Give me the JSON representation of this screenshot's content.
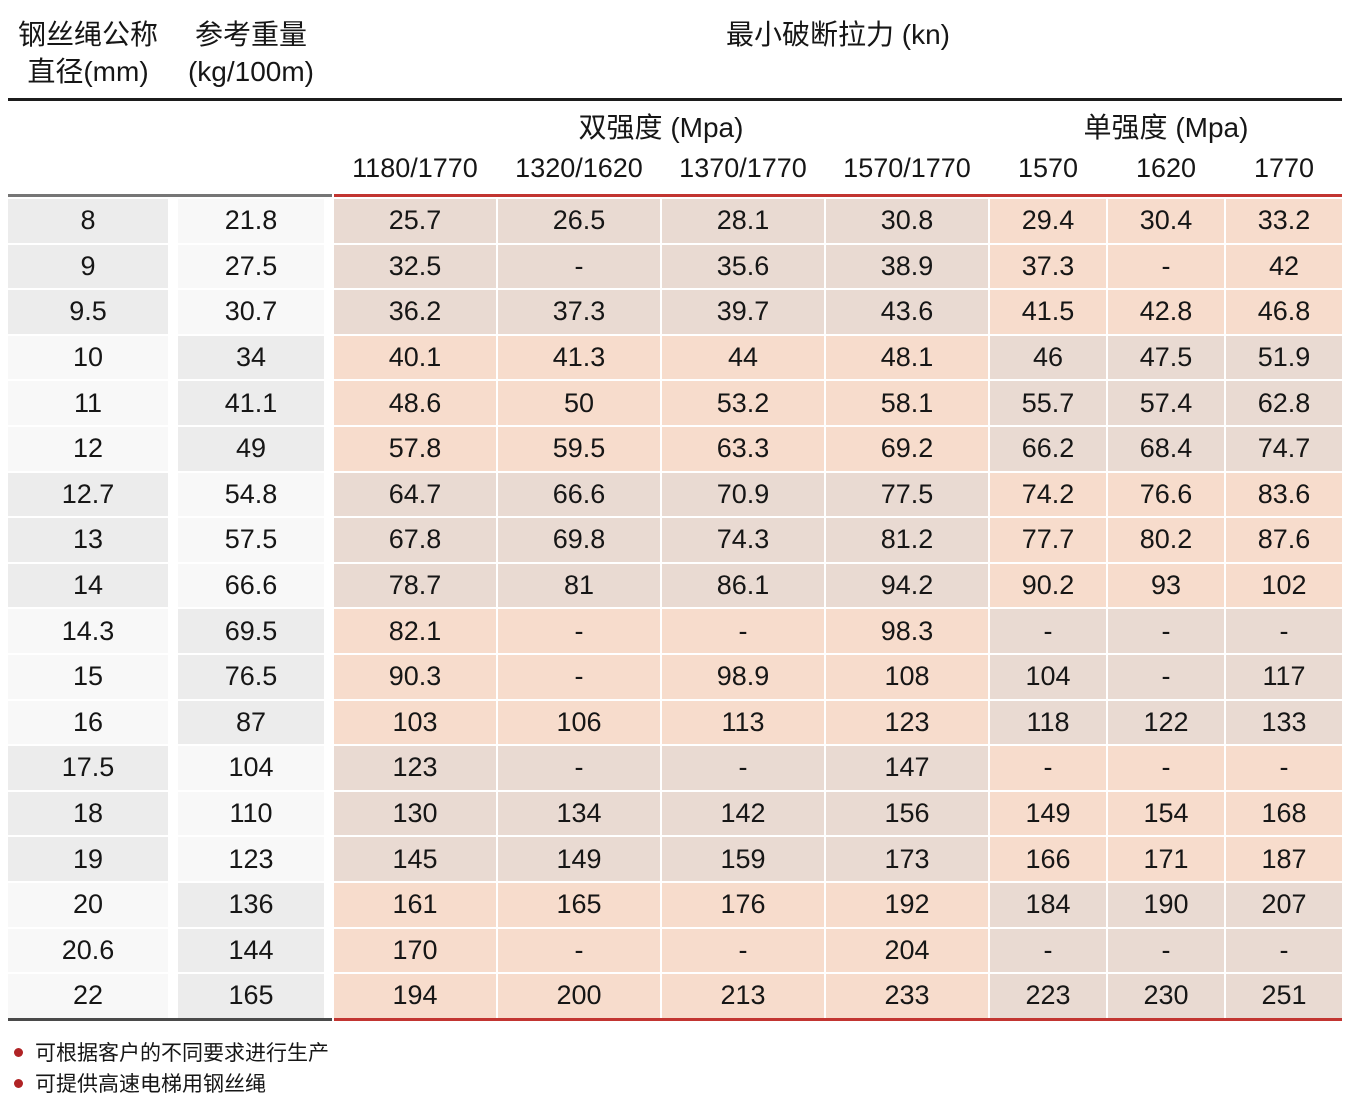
{
  "header": {
    "col1_line1": "钢丝绳公称",
    "col1_line2": "直径(mm)",
    "col2_line1": "参考重量",
    "col2_line2": "(kg/100m)",
    "span_title": "最小破断拉力 (kn)",
    "group_double": "双强度 (Mpa)",
    "group_single": "单强度 (Mpa)",
    "subcols": [
      "1180/1770",
      "1320/1620",
      "1370/1770",
      "1570/1770",
      "1570",
      "1620",
      "1770"
    ]
  },
  "rows": [
    {
      "diameter": "8",
      "weight": "21.8",
      "values": [
        "25.7",
        "26.5",
        "28.1",
        "30.8",
        "29.4",
        "30.4",
        "33.2"
      ]
    },
    {
      "diameter": "9",
      "weight": "27.5",
      "values": [
        "32.5",
        "-",
        "35.6",
        "38.9",
        "37.3",
        "-",
        "42"
      ]
    },
    {
      "diameter": "9.5",
      "weight": "30.7",
      "values": [
        "36.2",
        "37.3",
        "39.7",
        "43.6",
        "41.5",
        "42.8",
        "46.8"
      ]
    },
    {
      "diameter": "10",
      "weight": "34",
      "values": [
        "40.1",
        "41.3",
        "44",
        "48.1",
        "46",
        "47.5",
        "51.9"
      ]
    },
    {
      "diameter": "11",
      "weight": "41.1",
      "values": [
        "48.6",
        "50",
        "53.2",
        "58.1",
        "55.7",
        "57.4",
        "62.8"
      ]
    },
    {
      "diameter": "12",
      "weight": "49",
      "values": [
        "57.8",
        "59.5",
        "63.3",
        "69.2",
        "66.2",
        "68.4",
        "74.7"
      ]
    },
    {
      "diameter": "12.7",
      "weight": "54.8",
      "values": [
        "64.7",
        "66.6",
        "70.9",
        "77.5",
        "74.2",
        "76.6",
        "83.6"
      ]
    },
    {
      "diameter": "13",
      "weight": "57.5",
      "values": [
        "67.8",
        "69.8",
        "74.3",
        "81.2",
        "77.7",
        "80.2",
        "87.6"
      ]
    },
    {
      "diameter": "14",
      "weight": "66.6",
      "values": [
        "78.7",
        "81",
        "86.1",
        "94.2",
        "90.2",
        "93",
        "102"
      ]
    },
    {
      "diameter": "14.3",
      "weight": "69.5",
      "values": [
        "82.1",
        "-",
        "-",
        "98.3",
        "-",
        "-",
        "-"
      ]
    },
    {
      "diameter": "15",
      "weight": "76.5",
      "values": [
        "90.3",
        "-",
        "98.9",
        "108",
        "104",
        "-",
        "117"
      ]
    },
    {
      "diameter": "16",
      "weight": "87",
      "values": [
        "103",
        "106",
        "113",
        "123",
        "118",
        "122",
        "133"
      ]
    },
    {
      "diameter": "17.5",
      "weight": "104",
      "values": [
        "123",
        "-",
        "-",
        "147",
        "-",
        "-",
        "-"
      ]
    },
    {
      "diameter": "18",
      "weight": "110",
      "values": [
        "130",
        "134",
        "142",
        "156",
        "149",
        "154",
        "168"
      ]
    },
    {
      "diameter": "19",
      "weight": "123",
      "values": [
        "145",
        "149",
        "159",
        "173",
        "166",
        "171",
        "187"
      ]
    },
    {
      "diameter": "20",
      "weight": "136",
      "values": [
        "161",
        "165",
        "176",
        "192",
        "184",
        "190",
        "207"
      ]
    },
    {
      "diameter": "20.6",
      "weight": "144",
      "values": [
        "170",
        "-",
        "-",
        "204",
        "-",
        "-",
        "-"
      ]
    },
    {
      "diameter": "22",
      "weight": "165",
      "values": [
        "194",
        "200",
        "213",
        "233",
        "223",
        "230",
        "251"
      ]
    }
  ],
  "footnotes": [
    "可根据客户的不同要求进行生产",
    "可提供高速电梯用钢丝绳"
  ],
  "colors": {
    "accent_red": "#c23531",
    "bullet_red": "#b02325",
    "gray_cell": "#ececec",
    "light_cell": "#f8f8f8",
    "beige_cell": "#e9dad2",
    "pink_cell": "#f7dccc"
  }
}
